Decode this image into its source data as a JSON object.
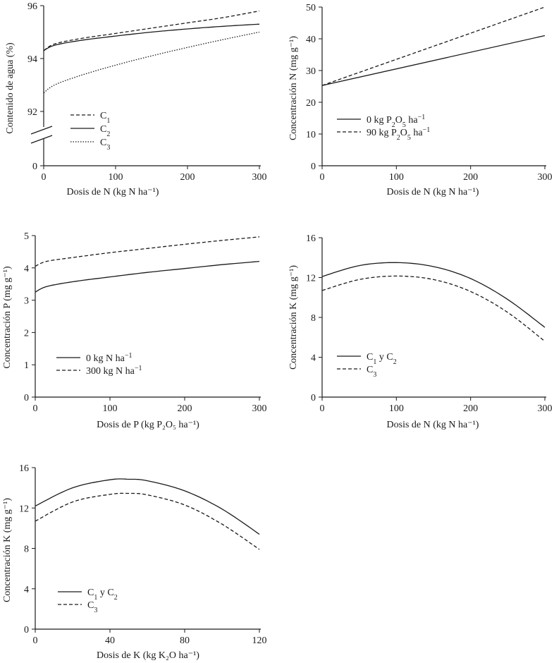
{
  "chart_data": [
    {
      "type": "line",
      "ylabel": "Contenido de agua (%)",
      "xlabel": "Dosis de N (kg N ha⁻¹)",
      "xlim": [
        0,
        300
      ],
      "ylim": [
        90,
        96
      ],
      "y_axis_break": true,
      "xticks": [
        "0",
        "100",
        "200",
        "300"
      ],
      "yticks": [
        "0",
        "92",
        "94",
        "96"
      ],
      "grid": false,
      "legend_position": "lower-left",
      "series": [
        {
          "name": "C1",
          "name_base": "C",
          "name_sub": "1",
          "style": "dashed",
          "x": [
            0,
            15,
            50,
            100,
            150,
            200,
            250,
            300
          ],
          "y": [
            94.3,
            94.55,
            94.75,
            94.95,
            95.15,
            95.35,
            95.55,
            95.8
          ]
        },
        {
          "name": "C2",
          "name_base": "C",
          "name_sub": "2",
          "style": "solid",
          "x": [
            0,
            15,
            50,
            100,
            150,
            200,
            250,
            300
          ],
          "y": [
            94.3,
            94.5,
            94.68,
            94.85,
            95.0,
            95.12,
            95.22,
            95.3
          ]
        },
        {
          "name": "C3",
          "name_base": "C",
          "name_sub": "3",
          "style": "dotted",
          "x": [
            0,
            15,
            50,
            100,
            150,
            200,
            250,
            300
          ],
          "y": [
            92.7,
            93.0,
            93.35,
            93.75,
            94.1,
            94.42,
            94.72,
            95.0
          ]
        }
      ]
    },
    {
      "type": "line",
      "ylabel": "Concentración N (mg g⁻¹)",
      "xlabel": "Dosis de N (kg N ha⁻¹)",
      "xlim": [
        0,
        300
      ],
      "ylim": [
        0,
        50
      ],
      "xticks": [
        "0",
        "100",
        "200",
        "300"
      ],
      "yticks": [
        "0",
        "10",
        "20",
        "30",
        "40",
        "50"
      ],
      "grid": false,
      "legend_position": "lower-left",
      "series": [
        {
          "name": "0 kg P2O5 ha-1",
          "label_pre": "0 kg P",
          "sub1": "2",
          "mid": "O",
          "sub2": "5",
          "label_post": " ha",
          "sup": "−1",
          "style": "solid",
          "x": [
            0,
            300
          ],
          "y": [
            25.3,
            41.0
          ]
        },
        {
          "name": "90 kg P2O5 ha-1",
          "label_pre": "90 kg P",
          "sub1": "2",
          "mid": "O",
          "sub2": "5",
          "label_post": " ha",
          "sup": "−1",
          "style": "dashed",
          "x": [
            0,
            300
          ],
          "y": [
            25.3,
            50.0
          ]
        }
      ]
    },
    {
      "type": "line",
      "ylabel": "Concentración P (mg g⁻¹)",
      "xlabel": "Dosis de P (kg P₂O₅ ha⁻¹)",
      "xlim": [
        0,
        300
      ],
      "ylim": [
        0,
        5
      ],
      "xticks": [
        "0",
        "100",
        "200",
        "300"
      ],
      "yticks": [
        "0",
        "1",
        "2",
        "3",
        "4",
        "5"
      ],
      "grid": false,
      "legend_position": "lower-left",
      "series": [
        {
          "name": "0 kg N ha-1",
          "label_pre": "0 kg N ha",
          "sup": "−1",
          "style": "solid",
          "x": [
            0,
            15,
            50,
            100,
            150,
            200,
            250,
            300
          ],
          "y": [
            3.25,
            3.42,
            3.57,
            3.72,
            3.86,
            3.98,
            4.1,
            4.2
          ]
        },
        {
          "name": "300 kg N ha-1",
          "label_pre": "300 kg N ha",
          "sup": "−1",
          "style": "dashed",
          "x": [
            0,
            15,
            50,
            100,
            150,
            200,
            250,
            300
          ],
          "y": [
            4.05,
            4.2,
            4.32,
            4.47,
            4.6,
            4.73,
            4.85,
            4.96
          ]
        }
      ]
    },
    {
      "type": "line",
      "ylabel": "Concentración K (mg g⁻¹)",
      "xlabel": "Dosis de N (kg N ha⁻¹)",
      "xlim": [
        0,
        300
      ],
      "ylim": [
        0,
        16
      ],
      "xticks": [
        "0",
        "100",
        "200",
        "300"
      ],
      "yticks": [
        "0",
        "4",
        "8",
        "12",
        "16"
      ],
      "grid": false,
      "legend_position": "lower-left",
      "series": [
        {
          "name": "C1 y C2",
          "style": "solid",
          "x": [
            0,
            50,
            100,
            150,
            200,
            250,
            300
          ],
          "y": [
            12.1,
            13.2,
            13.5,
            13.1,
            11.9,
            9.8,
            7.0
          ]
        },
        {
          "name": "C3",
          "name_base": "C",
          "name_sub": "3",
          "style": "dashed",
          "x": [
            0,
            50,
            100,
            150,
            200,
            250,
            300
          ],
          "y": [
            10.7,
            11.8,
            12.15,
            11.8,
            10.6,
            8.5,
            5.6
          ]
        }
      ]
    },
    {
      "type": "line",
      "ylabel": "Concentración K (mg g⁻¹)",
      "xlabel": "Dosis de K (kg K₂O ha⁻¹)",
      "xlim": [
        0,
        120
      ],
      "ylim": [
        0,
        16
      ],
      "xticks": [
        "0",
        "40",
        "80",
        "120"
      ],
      "yticks": [
        "0",
        "4",
        "8",
        "12",
        "16"
      ],
      "grid": false,
      "legend_position": "lower-left",
      "series": [
        {
          "name": "C1 y C2",
          "style": "solid",
          "x": [
            0,
            20,
            40,
            50,
            60,
            80,
            100,
            120
          ],
          "y": [
            12.2,
            14.0,
            14.8,
            14.85,
            14.7,
            13.7,
            11.9,
            9.4
          ]
        },
        {
          "name": "C3",
          "name_base": "C",
          "name_sub": "3",
          "style": "dashed",
          "x": [
            0,
            20,
            40,
            50,
            60,
            80,
            100,
            120
          ],
          "y": [
            10.7,
            12.6,
            13.35,
            13.45,
            13.3,
            12.3,
            10.4,
            7.9
          ]
        }
      ]
    }
  ]
}
